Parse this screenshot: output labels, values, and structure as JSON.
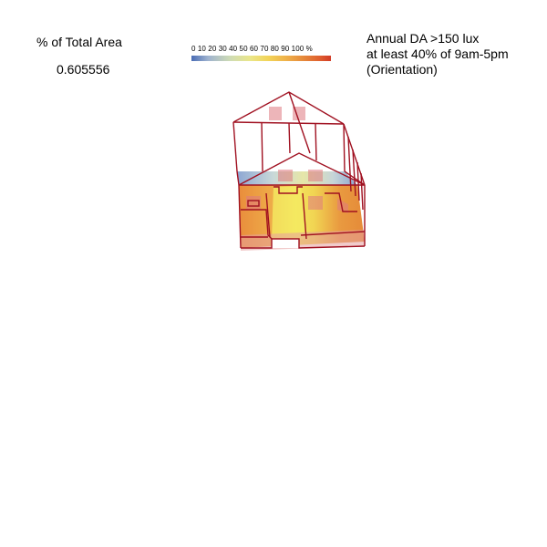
{
  "summary": {
    "area_title": "% of Total Area",
    "area_value": "0.605556"
  },
  "legend": {
    "labels": "0 10 20 30 40 50 60 70 80 90 100 %",
    "gradient": [
      "#4a6db5",
      "#9fb3cf",
      "#cfdcb4",
      "#eae68a",
      "#f2d458",
      "#efb14a",
      "#e68a3b",
      "#df5f2f",
      "#d23b26"
    ]
  },
  "metric": {
    "line1": "Annual DA >150 lux",
    "line2": "at least 40% of 9am-5pm",
    "line3": "(Orientation)"
  },
  "colors": {
    "wireframe": "#a01020",
    "window": "#e07a80"
  }
}
